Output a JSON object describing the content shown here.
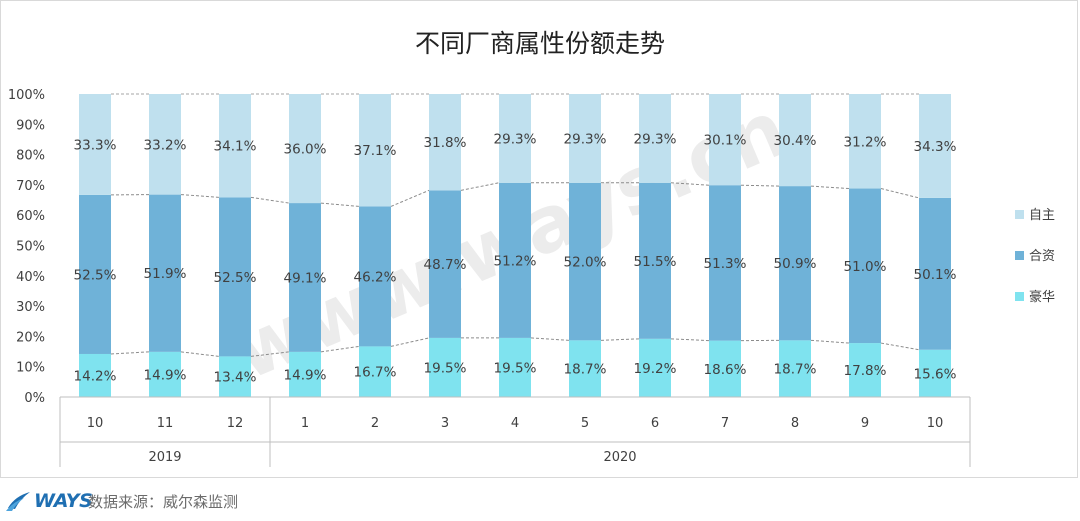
{
  "chart_data": {
    "type": "bar",
    "stacked": true,
    "percent_stacked": true,
    "title": "不同厂商属性份额走势",
    "categories": [
      "10",
      "11",
      "12",
      "1",
      "2",
      "3",
      "4",
      "5",
      "6",
      "7",
      "8",
      "9",
      "10"
    ],
    "groups": [
      {
        "label": "2019",
        "count": 3
      },
      {
        "label": "2020",
        "count": 10
      }
    ],
    "series": [
      {
        "name": "豪华",
        "color": "#7fe3ef",
        "values": [
          14.2,
          14.9,
          13.4,
          14.9,
          16.7,
          19.5,
          19.5,
          18.7,
          19.2,
          18.6,
          18.7,
          17.8,
          15.6
        ]
      },
      {
        "name": "合资",
        "color": "#6fb2d8",
        "values": [
          52.5,
          51.9,
          52.5,
          49.1,
          46.2,
          48.7,
          51.2,
          52.0,
          51.5,
          51.3,
          50.9,
          51.0,
          50.1
        ]
      },
      {
        "name": "自主",
        "color": "#bfe0ee",
        "values": [
          33.3,
          33.2,
          34.1,
          36.0,
          37.1,
          31.8,
          29.3,
          29.3,
          29.3,
          30.1,
          30.4,
          31.2,
          34.3
        ]
      }
    ],
    "legend_order": [
      "自主",
      "合资",
      "豪华"
    ],
    "yticks": [
      "0%",
      "10%",
      "20%",
      "30%",
      "40%",
      "50%",
      "60%",
      "70%",
      "80%",
      "90%",
      "100%"
    ],
    "ylim": [
      0,
      100
    ],
    "legend_position": "right",
    "grid": false
  },
  "watermark": "www.ways.cn",
  "footer": {
    "brand": "WAYS",
    "source": "数据来源：威尔森监测"
  }
}
